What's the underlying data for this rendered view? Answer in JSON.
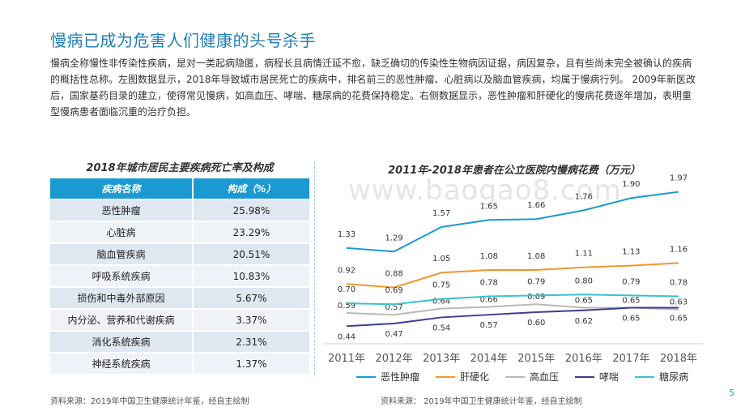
{
  "title": "慢病已成为危害人们健康的头号杀手",
  "intro": "慢病全称慢性非传染性疾病，是对一类起病隐匿，病程长且病情迁延不愈，缺乏确切的传染性生物病因证据，病因复杂，且有些尚未完全被确认的疾病的概括性总称。左图数据显示，2018年导致城市居民死亡的疾病中，排名前三的恶性肿瘤、心脏病以及脑血管疾病，均属于慢病行列。 2009年新医改后，国家基药目录的建立，使得常见慢病，如高血压、哮喘、糖尿病的花费保持稳定。右侧数据显示，恶性肿瘤和肝硬化的慢病花费逐年增加，表明重型慢病患者面临沉重的治疗负担。",
  "watermark": "www.baogao8.com",
  "table": {
    "title": "2018年城市居民主要疾病死亡率及构成",
    "headers": [
      "疾病名称",
      "构成（%）"
    ],
    "rows": [
      {
        "name": "恶性肿瘤",
        "value": "25.98%"
      },
      {
        "name": "心脏病",
        "value": "23.29%"
      },
      {
        "name": "脑血管疾病",
        "value": "20.51%"
      },
      {
        "name": "呼吸系统疾病",
        "value": "10.83%"
      },
      {
        "name": "损伤和中毒外部原因",
        "value": "5.67%"
      },
      {
        "name": "内分泌、营养和代谢疾病",
        "value": "3.37%"
      },
      {
        "name": "消化系统疾病",
        "value": "2.31%"
      },
      {
        "name": "神经系统疾病",
        "value": "1.37%"
      }
    ]
  },
  "chart_data": {
    "type": "line",
    "title": "2011年-2018年患者在公立医院内慢病花费（万元）",
    "xlabel": "",
    "ylabel": "",
    "x": [
      "2011年",
      "2012年",
      "2013年",
      "2014年",
      "2015年",
      "2016年",
      "2017年",
      "2018年"
    ],
    "ylim": [
      0.35,
      2.05
    ],
    "grid": false,
    "legend_position": "bottom",
    "series": [
      {
        "name": "恶性肿瘤",
        "color": "#1b9ad2",
        "values": [
          1.33,
          1.29,
          1.57,
          1.65,
          1.66,
          1.76,
          1.9,
          1.97
        ],
        "labels": [
          "1.33",
          "1.29",
          "1.57",
          "1.65",
          "1.66",
          "1.76",
          "1.90",
          "1.97"
        ]
      },
      {
        "name": "肝硬化",
        "color": "#f0962e",
        "values": [
          0.92,
          0.88,
          1.05,
          1.08,
          1.08,
          1.11,
          1.13,
          1.16
        ],
        "labels": [
          "0.92",
          "0.88",
          "1.05",
          "1.08",
          "1.08",
          "1.11",
          "1.13",
          "1.16"
        ]
      },
      {
        "name": "高血压",
        "color": "#b9b9b9",
        "values": [
          0.59,
          0.57,
          0.64,
          0.66,
          0.69,
          0.65,
          0.65,
          0.63
        ],
        "labels": [
          "0.59",
          "0.57",
          "0.64",
          "0.66",
          "0.69",
          "0.65",
          "0.65",
          "0.63"
        ]
      },
      {
        "name": "哮喘",
        "color": "#3b3f94",
        "values": [
          0.44,
          0.47,
          0.54,
          0.57,
          0.6,
          0.62,
          0.65,
          0.65
        ],
        "labels": [
          "0.44",
          "0.47",
          "0.54",
          "0.57",
          "0.60",
          "0.62",
          "0.65",
          "0.65"
        ]
      },
      {
        "name": "糖尿病",
        "color": "#37c2cf",
        "values": [
          0.7,
          0.69,
          0.75,
          0.78,
          0.79,
          0.8,
          0.79,
          0.78
        ],
        "labels": [
          "0.70",
          "0.69",
          "0.75",
          "0.78",
          "0.79",
          "0.80",
          "0.79",
          "0.78"
        ]
      }
    ]
  },
  "source_left": "资料来源：2019年中国卫生健康统计年鉴，经自主绘制",
  "source_right": "资料来源： 2019年中国卫生健康统计年鉴，经自主绘制",
  "page_number": "5"
}
